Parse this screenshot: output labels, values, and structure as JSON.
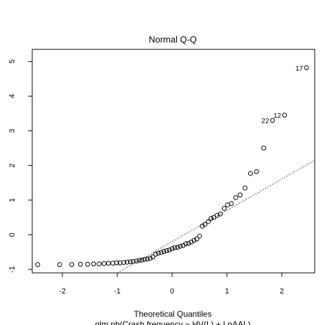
{
  "chart_data": {
    "type": "scatter",
    "title": "Normal Q-Q",
    "xlabel": "Theoretical Quantiles",
    "subtitle": "glm.nb(Crash.frequency ~ HV(L) + LnAAL)",
    "ylabel": "",
    "xlim": [
      -2.55,
      2.6
    ],
    "ylim": [
      -1.1,
      5.35
    ],
    "x_ticks": [
      -2,
      -1,
      0,
      1,
      2
    ],
    "y_ticks": [
      -1,
      0,
      1,
      2,
      3,
      4,
      5
    ],
    "grid": false,
    "reference_line": {
      "style": "dotted",
      "p1": [
        -1.0,
        -1.1
      ],
      "p2": [
        2.6,
        2.15
      ]
    },
    "points": [
      {
        "x": -2.45,
        "y": -0.86
      },
      {
        "x": -2.05,
        "y": -0.86
      },
      {
        "x": -1.83,
        "y": -0.86
      },
      {
        "x": -1.67,
        "y": -0.85
      },
      {
        "x": -1.54,
        "y": -0.85
      },
      {
        "x": -1.43,
        "y": -0.84
      },
      {
        "x": -1.33,
        "y": -0.84
      },
      {
        "x": -1.24,
        "y": -0.83
      },
      {
        "x": -1.16,
        "y": -0.82
      },
      {
        "x": -1.08,
        "y": -0.82
      },
      {
        "x": -1.01,
        "y": -0.81
      },
      {
        "x": -0.95,
        "y": -0.81
      },
      {
        "x": -0.88,
        "y": -0.8
      },
      {
        "x": -0.82,
        "y": -0.79
      },
      {
        "x": -0.76,
        "y": -0.78
      },
      {
        "x": -0.71,
        "y": -0.77
      },
      {
        "x": -0.65,
        "y": -0.76
      },
      {
        "x": -0.6,
        "y": -0.74
      },
      {
        "x": -0.55,
        "y": -0.73
      },
      {
        "x": -0.5,
        "y": -0.71
      },
      {
        "x": -0.45,
        "y": -0.7
      },
      {
        "x": -0.4,
        "y": -0.68
      },
      {
        "x": -0.35,
        "y": -0.64
      },
      {
        "x": -0.3,
        "y": -0.56
      },
      {
        "x": -0.25,
        "y": -0.53
      },
      {
        "x": -0.2,
        "y": -0.51
      },
      {
        "x": -0.15,
        "y": -0.48
      },
      {
        "x": -0.1,
        "y": -0.46
      },
      {
        "x": -0.05,
        "y": -0.44
      },
      {
        "x": 0.0,
        "y": -0.4
      },
      {
        "x": 0.05,
        "y": -0.37
      },
      {
        "x": 0.1,
        "y": -0.36
      },
      {
        "x": 0.15,
        "y": -0.33
      },
      {
        "x": 0.2,
        "y": -0.31
      },
      {
        "x": 0.25,
        "y": -0.26
      },
      {
        "x": 0.3,
        "y": -0.25
      },
      {
        "x": 0.35,
        "y": -0.21
      },
      {
        "x": 0.4,
        "y": -0.16
      },
      {
        "x": 0.45,
        "y": -0.12
      },
      {
        "x": 0.5,
        "y": -0.04
      },
      {
        "x": 0.55,
        "y": 0.25
      },
      {
        "x": 0.6,
        "y": 0.3
      },
      {
        "x": 0.66,
        "y": 0.38
      },
      {
        "x": 0.71,
        "y": 0.47
      },
      {
        "x": 0.76,
        "y": 0.5
      },
      {
        "x": 0.82,
        "y": 0.56
      },
      {
        "x": 0.88,
        "y": 0.6
      },
      {
        "x": 0.95,
        "y": 0.76
      },
      {
        "x": 1.01,
        "y": 0.86
      },
      {
        "x": 1.08,
        "y": 0.9
      },
      {
        "x": 1.16,
        "y": 1.07
      },
      {
        "x": 1.24,
        "y": 1.15
      },
      {
        "x": 1.33,
        "y": 1.35
      },
      {
        "x": 1.43,
        "y": 1.77
      },
      {
        "x": 1.54,
        "y": 1.82
      },
      {
        "x": 1.67,
        "y": 2.5
      },
      {
        "x": 1.83,
        "y": 3.3
      },
      {
        "x": 2.05,
        "y": 3.45
      },
      {
        "x": 2.45,
        "y": 4.82
      }
    ],
    "point_labels": [
      {
        "text": "17",
        "x": 2.45,
        "y": 4.82
      },
      {
        "text": "22",
        "x": 1.83,
        "y": 3.3
      },
      {
        "text": "12",
        "x": 2.05,
        "y": 3.45
      }
    ]
  }
}
